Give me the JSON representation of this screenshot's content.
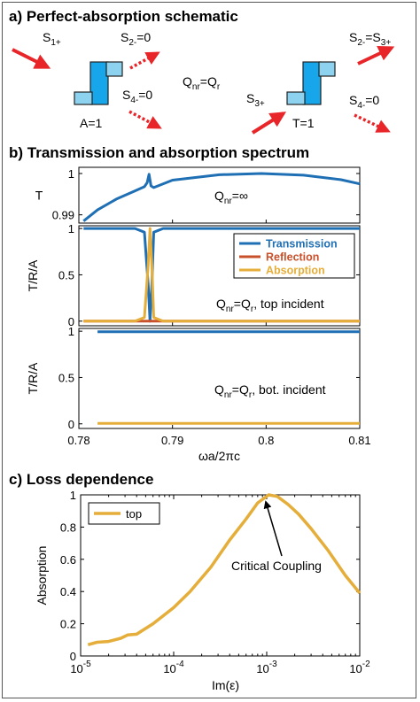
{
  "panel_a": {
    "title": "a) Perfect-absorption schematic",
    "left": {
      "s1": "S",
      "s1_sub": "1+",
      "s2": "S",
      "s2_sub": "2-",
      "s2_val": "=0",
      "s4": "S",
      "s4_sub": "4-",
      "s4_val": "=0",
      "caption": "A=1"
    },
    "middle": {
      "q1": "Q",
      "q1_sub": "nr",
      "eq": "=Q",
      "q2_sub": "r"
    },
    "right": {
      "s2": "S",
      "s2_sub": "2-",
      "s2_eq": "=S",
      "s2_eq_sub": "3+",
      "s3": "S",
      "s3_sub": "3+",
      "s4": "S",
      "s4_sub": "4-",
      "s4_val": "=0",
      "caption": "T=1"
    },
    "colors": {
      "arrow": "#e8262a",
      "device": "#16a6e9",
      "device_light": "#8dd3f0"
    }
  },
  "panel_b": {
    "title": "b) Transmission and absorption spectrum",
    "xlabel": "ωa/2πc",
    "colors": {
      "transmission": "#1f6fb4",
      "reflection": "#c8502a",
      "absorption": "#e5ae3a"
    }
  },
  "panel_c": {
    "title": "c) Loss dependence",
    "annotation": "Critical Coupling"
  },
  "chart_data": [
    {
      "type": "line",
      "ylabel": "T",
      "xlim": [
        0.78,
        0.81
      ],
      "ylim": [
        0.988,
        1.0015
      ],
      "yticks": [
        "1",
        "0.99"
      ],
      "annotation": {
        "q": "Q",
        "q_sub": "nr",
        "rest": "=∞"
      },
      "series": [
        {
          "x": [
            0.7805,
            0.782,
            0.784,
            0.786,
            0.787,
            0.7873,
            0.7875,
            0.7877,
            0.788,
            0.79,
            0.795,
            0.7995,
            0.804,
            0.808,
            0.81
          ],
          "y": [
            0.9885,
            0.9912,
            0.9938,
            0.9958,
            0.9968,
            0.9978,
            0.9998,
            0.997,
            0.9966,
            0.9984,
            0.9997,
            1.0,
            0.9996,
            0.9985,
            0.9975
          ]
        }
      ]
    },
    {
      "type": "line",
      "ylabel": "T/R/A",
      "xlim": [
        0.78,
        0.81
      ],
      "ylim": [
        -0.05,
        1.03
      ],
      "yticks": [
        "1",
        "0.5",
        "0"
      ],
      "legend_position": "top-right",
      "annotation": {
        "q": "Q",
        "q_sub": "nr",
        "eq": "=Q",
        "q2_sub": "r",
        "rest": ", top incident"
      },
      "series": [
        {
          "name": "Transmission",
          "x": [
            0.7805,
            0.786,
            0.787,
            0.7874,
            0.7876,
            0.7878,
            0.788,
            0.789,
            0.81
          ],
          "y": [
            1,
            1,
            0.96,
            0.4,
            0.0,
            0.4,
            0.96,
            1,
            1
          ]
        },
        {
          "name": "Reflection",
          "x": [
            0.7805,
            0.81
          ],
          "y": [
            0.0,
            0.0
          ]
        },
        {
          "name": "Absorption",
          "x": [
            0.7805,
            0.786,
            0.787,
            0.7874,
            0.7876,
            0.7878,
            0.788,
            0.789,
            0.81
          ],
          "y": [
            0,
            0,
            0.04,
            0.6,
            1.0,
            0.6,
            0.04,
            0,
            0
          ]
        }
      ]
    },
    {
      "type": "line",
      "ylabel": "T/R/A",
      "xlabel": "ωa/2πc",
      "xlim": [
        0.78,
        0.81
      ],
      "ylim": [
        -0.05,
        1.03
      ],
      "xticks": [
        "0.78",
        "0.79",
        "0.8",
        "0.81"
      ],
      "yticks": [
        "1",
        "0.5",
        "0"
      ],
      "annotation": {
        "q": "Q",
        "q_sub": "nr",
        "eq": "=Q",
        "q2_sub": "r",
        "rest": ", bot. incident"
      },
      "series": [
        {
          "name": "Transmission",
          "x": [
            0.782,
            0.81
          ],
          "y": [
            0.995,
            0.995
          ]
        },
        {
          "name": "Absorption",
          "x": [
            0.782,
            0.81
          ],
          "y": [
            0.005,
            0.005
          ]
        }
      ]
    },
    {
      "type": "line",
      "xlabel": "Im(ε)",
      "ylabel": "Absorption",
      "xscale": "log",
      "xlim": [
        1e-05,
        0.01
      ],
      "ylim": [
        0,
        1
      ],
      "xticks": [
        "-5",
        "-4",
        "-3",
        "-2"
      ],
      "yticks": [
        "0",
        "0.2",
        "0.4",
        "0.6",
        "0.8",
        "1"
      ],
      "legend_position": "top-left",
      "series": [
        {
          "name": "top",
          "x": [
            1.2e-05,
            1.5e-05,
            2e-05,
            2.7e-05,
            3.2e-05,
            4e-05,
            6e-05,
            0.0001,
            0.00015,
            0.00025,
            0.0004,
            0.0006,
            0.0008,
            0.00105,
            0.0013,
            0.0017,
            0.0022,
            0.003,
            0.0045,
            0.007,
            0.01
          ],
          "y": [
            0.07,
            0.085,
            0.09,
            0.11,
            0.13,
            0.135,
            0.2,
            0.3,
            0.4,
            0.55,
            0.72,
            0.85,
            0.95,
            1.0,
            0.99,
            0.94,
            0.88,
            0.79,
            0.66,
            0.5,
            0.39
          ]
        }
      ]
    }
  ]
}
